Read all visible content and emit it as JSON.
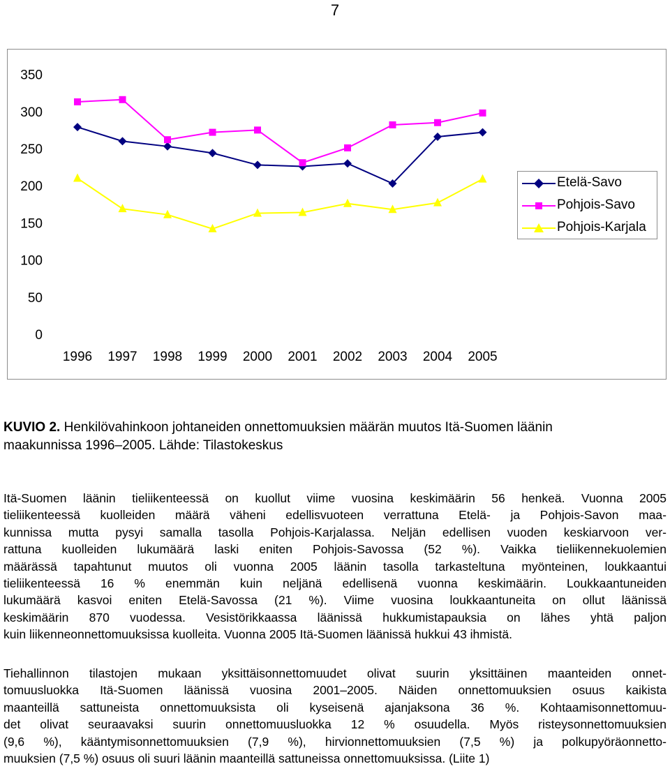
{
  "page": {
    "number": "7"
  },
  "chart_data": {
    "type": "line",
    "categories": [
      "1996",
      "1997",
      "1998",
      "1999",
      "2000",
      "2001",
      "2002",
      "2003",
      "2004",
      "2005"
    ],
    "ylim": [
      0,
      350
    ],
    "yticks": [
      "0",
      "50",
      "100",
      "150",
      "200",
      "250",
      "300",
      "350"
    ],
    "grid": false,
    "legend_position": "right",
    "series": [
      {
        "name": "Etelä-Savo",
        "color": "#000080",
        "marker": "diamond",
        "values": [
          279,
          260,
          253,
          244,
          228,
          226,
          230,
          203,
          266,
          272
        ]
      },
      {
        "name": "Pohjois-Savo",
        "color": "#ff00ff",
        "marker": "square",
        "values": [
          313,
          316,
          262,
          272,
          275,
          231,
          251,
          282,
          285,
          298
        ]
      },
      {
        "name": "Pohjois-Karjala",
        "color": "#ffff00",
        "marker": "triangle",
        "values": [
          210,
          169,
          161,
          142,
          163,
          164,
          176,
          168,
          177,
          209
        ]
      }
    ]
  },
  "caption": {
    "label": "KUVIO 2.",
    "line1": "Henkilövahinkoon johtaneiden onnettomuuksien määrän muutos Itä-Suomen läänin",
    "line2": "maakunnissa 1996–2005. Lähde: Tilastokeskus"
  },
  "paragraph1": [
    "Itä-Suomen läänin tieliikenteessä on kuollut viime vuosina keskimäärin 56 henkeä. Vuonna 2005",
    "tieliikenteessä kuolleiden määrä väheni edellisvuoteen verrattuna Etelä- ja Pohjois-Savon maa-",
    "kunnissa mutta pysyi samalla tasolla Pohjois-Karjalassa. Neljän edellisen vuoden keskiarvoon ver-",
    "rattuna kuolleiden lukumäärä laski eniten Pohjois-Savossa (52 %). Vaikka tieliikennekuolemien",
    "määrässä tapahtunut muutos oli vuonna 2005 läänin tasolla tarkasteltuna myönteinen, loukkaantui",
    "tieliikenteessä 16 % enemmän kuin neljänä edellisenä vuonna keskimäärin. Loukkaantuneiden",
    "lukumäärä kasvoi eniten Etelä-Savossa (21 %). Viime vuosina loukkaantuneita on ollut läänissä",
    "keskimäärin 870 vuodessa. Vesistörikkaassa läänissä hukkumistapauksia on lähes yhtä paljon",
    "kuin liikenneonnettomuuksissa kuolleita. Vuonna 2005 Itä-Suomen läänissä hukkui 43 ihmistä."
  ],
  "paragraph2": [
    "Tiehallinnon tilastojen mukaan yksittäisonnettomuudet olivat suurin yksittäinen maanteiden onnet-",
    "tomuusluokka Itä-Suomen läänissä vuosina 2001–2005. Näiden onnettomuuksien osuus kaikista",
    "maanteillä sattuneista onnettomuuksista oli kyseisenä ajanjaksona 36 %. Kohtaamisonnettomuu-",
    "det olivat seuraavaksi suurin onnettomuusluokka 12 % osuudella. Myös risteysonnettomuuksien",
    "(9,6 %), kääntymisonnettomuuksien (7,9 %), hirvionnettomuuksien (7,5 %) ja polkupyöräonnetto-",
    "muuksien (7,5 %) osuus oli suuri läänin maanteillä sattuneissa onnettomuuksissa. (Liite 1)"
  ]
}
